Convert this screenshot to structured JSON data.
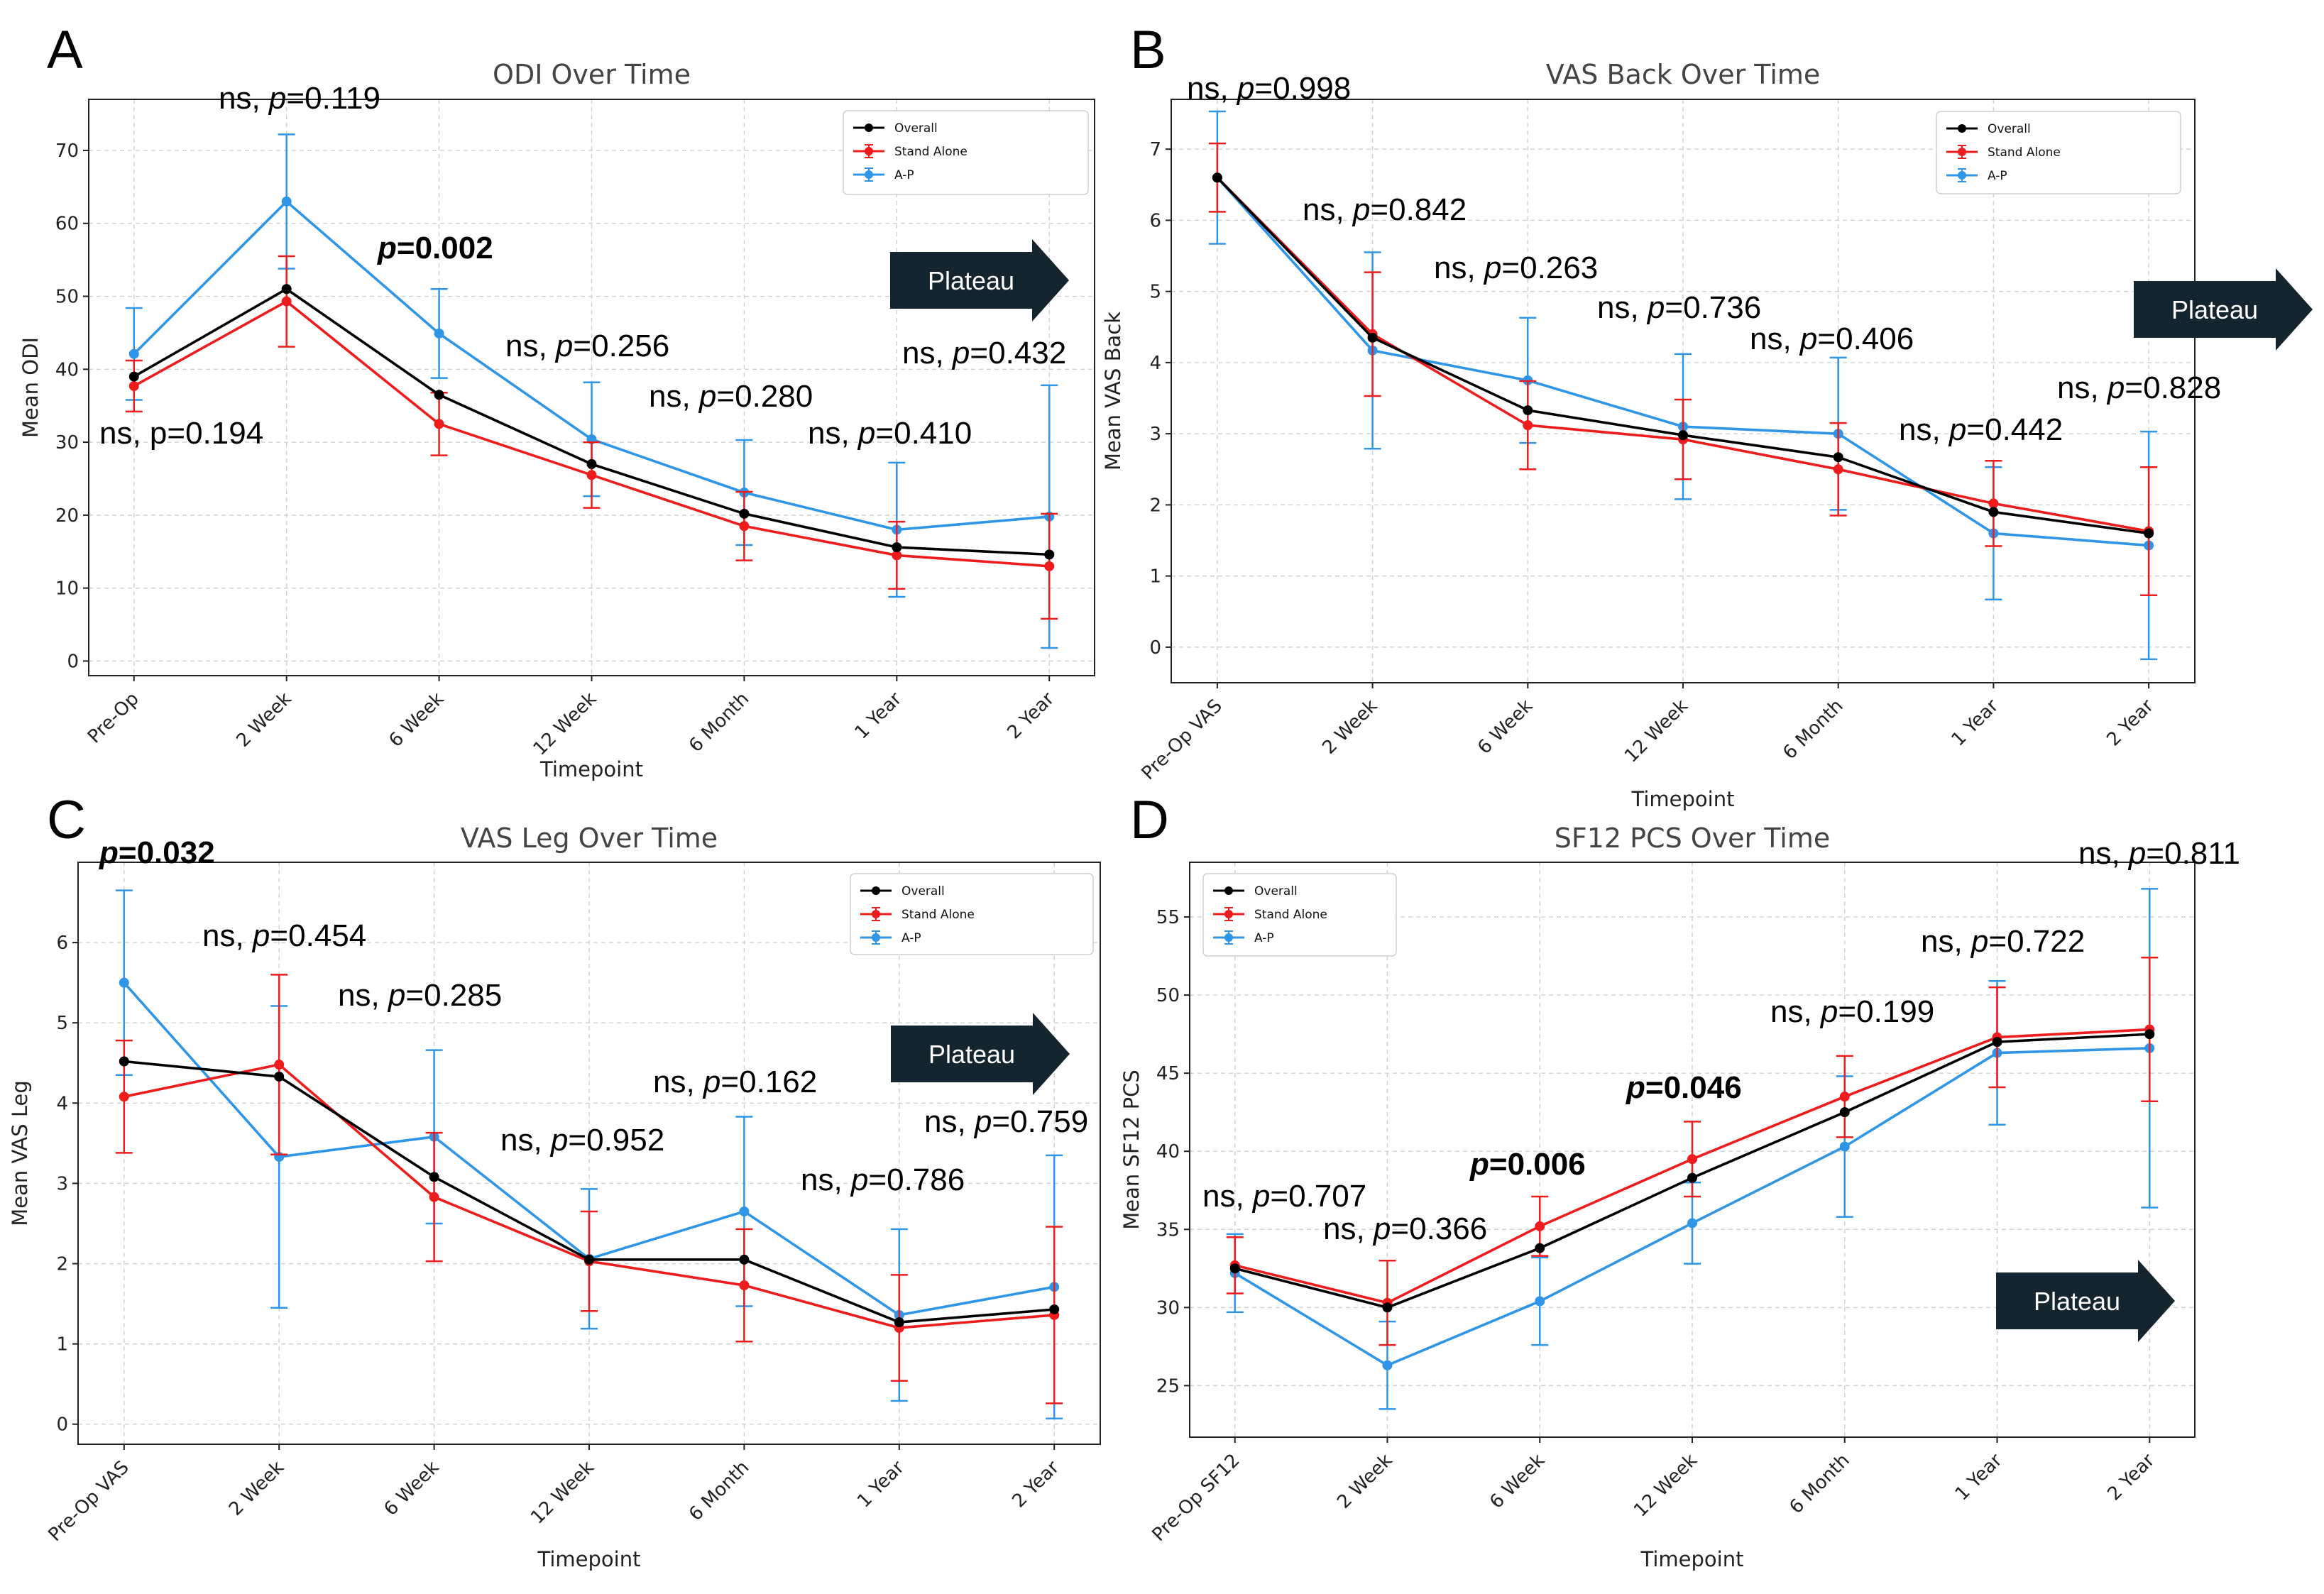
{
  "colors": {
    "overall": "#000000",
    "stand_alone": "#ee1c1c",
    "ap": "#2f95e6",
    "plateau": "#152530"
  },
  "chart_data": [
    {
      "panel": "A",
      "type": "line",
      "title": "ODI Over Time",
      "xlabel": "Timepoint",
      "ylabel": "Mean ODI",
      "categories": [
        "Pre-Op",
        "2 Week",
        "6 Week",
        "12 Week",
        "6 Month",
        "1 Year",
        "2 Year"
      ],
      "ylim": [
        -2,
        77
      ],
      "yticks": [
        0,
        10,
        20,
        30,
        40,
        50,
        60,
        70
      ],
      "series": [
        {
          "name": "Overall",
          "color": "#000000",
          "values": [
            39,
            51,
            36.5,
            27,
            20.2,
            15.6,
            14.6
          ],
          "err": [
            0,
            0,
            0,
            0,
            0,
            0,
            0
          ]
        },
        {
          "name": "Stand Alone",
          "color": "#ee1c1c",
          "values": [
            37.7,
            49.3,
            32.5,
            25.5,
            18.5,
            14.5,
            13
          ],
          "err": [
            3.5,
            6.2,
            4.3,
            4.5,
            4.7,
            4.6,
            7.2
          ]
        },
        {
          "name": "A-P",
          "color": "#2f95e6",
          "values": [
            42.1,
            63,
            44.9,
            30.4,
            23.1,
            18,
            19.8
          ],
          "err": [
            6.3,
            9.2,
            6.1,
            7.8,
            7.2,
            9.2,
            18
          ]
        }
      ],
      "annotations": [
        {
          "text_pre": "ns, ",
          "p_label": "p",
          "text_post": "=0.119",
          "bold": false
        },
        {
          "text_pre": "",
          "p_label": "p",
          "text_post": "=0.002",
          "bold": true
        },
        {
          "text_pre": "ns, ",
          "p_label": "p",
          "text_post": "=0.256",
          "bold": false
        },
        {
          "text_pre": "ns, ",
          "p_label": "p",
          "text_post": "=0.280",
          "bold": false
        },
        {
          "text_pre": "ns, ",
          "p_label": "p",
          "text_post": "=0.432",
          "bold": false
        },
        {
          "text_pre": "ns, ",
          "p_label": "p",
          "text_post": "=0.410",
          "bold": false
        },
        {
          "text_pre": "ns, p=0.194",
          "p_label": "",
          "text_post": "",
          "bold": false
        }
      ],
      "plateau_label": "Plateau",
      "legend": [
        "Overall",
        "Stand Alone",
        "A-P"
      ]
    },
    {
      "panel": "B",
      "type": "line",
      "title": "VAS Back Over Time",
      "xlabel": "Timepoint",
      "ylabel": "Mean VAS Back",
      "categories": [
        "Pre-Op VAS",
        "2 Week",
        "6 Week",
        "12 Week",
        "6 Month",
        "1 Year",
        "2 Year"
      ],
      "ylim": [
        -0.5,
        7.7
      ],
      "yticks": [
        0,
        1,
        2,
        3,
        4,
        5,
        6,
        7
      ],
      "series": [
        {
          "name": "Overall",
          "color": "#000000",
          "values": [
            6.6,
            4.35,
            3.33,
            2.98,
            2.67,
            1.9,
            1.6
          ],
          "err": [
            0,
            0,
            0,
            0,
            0,
            0,
            0
          ]
        },
        {
          "name": "Stand Alone",
          "color": "#ee1c1c",
          "values": [
            6.6,
            4.4,
            3.12,
            2.92,
            2.5,
            2.02,
            1.63
          ],
          "err": [
            0.48,
            0.87,
            0.62,
            0.56,
            0.65,
            0.6,
            0.9
          ]
        },
        {
          "name": "A-P",
          "color": "#2f95e6",
          "values": [
            6.6,
            4.17,
            3.75,
            3.1,
            3.0,
            1.6,
            1.43
          ],
          "err": [
            0.93,
            1.38,
            0.88,
            1.02,
            1.07,
            0.93,
            1.6
          ]
        }
      ],
      "annotations": [
        {
          "text_pre": "ns, ",
          "p_label": "p",
          "text_post": "=0.998",
          "bold": false
        },
        {
          "text_pre": "ns, ",
          "p_label": "p",
          "text_post": "=0.842",
          "bold": false
        },
        {
          "text_pre": "ns, ",
          "p_label": "p",
          "text_post": "=0.263",
          "bold": false
        },
        {
          "text_pre": "ns, ",
          "p_label": "p",
          "text_post": "=0.736",
          "bold": false
        },
        {
          "text_pre": "ns, ",
          "p_label": "p",
          "text_post": "=0.406",
          "bold": false
        },
        {
          "text_pre": "ns, ",
          "p_label": "p",
          "text_post": "=0.442",
          "bold": false
        },
        {
          "text_pre": "ns, ",
          "p_label": "p",
          "text_post": "=0.828",
          "bold": false
        }
      ],
      "plateau_label": "Plateau",
      "legend": [
        "Overall",
        "Stand Alone",
        "A-P"
      ]
    },
    {
      "panel": "C",
      "type": "line",
      "title": "VAS Leg Over Time",
      "xlabel": "Timepoint",
      "ylabel": "Mean VAS Leg",
      "categories": [
        "Pre-Op VAS",
        "2 Week",
        "6 Week",
        "12 Week",
        "6 Month",
        "1 Year",
        "2 Year"
      ],
      "ylim": [
        -0.25,
        7.0
      ],
      "yticks": [
        0,
        1,
        2,
        3,
        4,
        5,
        6
      ],
      "series": [
        {
          "name": "Overall",
          "color": "#000000",
          "values": [
            4.52,
            4.33,
            3.08,
            2.05,
            2.05,
            1.27,
            1.43
          ],
          "err": [
            0,
            0,
            0,
            0,
            0,
            0,
            0
          ]
        },
        {
          "name": "Stand Alone",
          "color": "#ee1c1c",
          "values": [
            4.08,
            4.48,
            2.83,
            2.03,
            1.73,
            1.2,
            1.36
          ],
          "err": [
            0.7,
            1.12,
            0.8,
            0.62,
            0.7,
            0.66,
            1.1
          ]
        },
        {
          "name": "A-P",
          "color": "#2f95e6",
          "values": [
            5.5,
            3.33,
            3.58,
            2.06,
            2.65,
            1.36,
            1.71
          ],
          "err": [
            1.15,
            1.88,
            1.08,
            0.87,
            1.18,
            1.07,
            1.64
          ]
        }
      ],
      "annotations": [
        {
          "text_pre": "",
          "p_label": "p",
          "text_post": "=0.032",
          "bold": true
        },
        {
          "text_pre": "ns, ",
          "p_label": "p",
          "text_post": "=0.454",
          "bold": false
        },
        {
          "text_pre": "ns, ",
          "p_label": "p",
          "text_post": "=0.285",
          "bold": false
        },
        {
          "text_pre": "ns, ",
          "p_label": "p",
          "text_post": "=0.952",
          "bold": false
        },
        {
          "text_pre": "ns, ",
          "p_label": "p",
          "text_post": "=0.162",
          "bold": false
        },
        {
          "text_pre": "ns, ",
          "p_label": "p",
          "text_post": "=0.786",
          "bold": false
        },
        {
          "text_pre": "ns, ",
          "p_label": "p",
          "text_post": "=0.759",
          "bold": false
        }
      ],
      "plateau_label": "Plateau",
      "legend": [
        "Overall",
        "Stand Alone",
        "A-P"
      ]
    },
    {
      "panel": "D",
      "type": "line",
      "title": "SF12 PCS Over Time",
      "xlabel": "Timepoint",
      "ylabel": "Mean SF12 PCS",
      "categories": [
        "Pre-Op SF12",
        "2 Week",
        "6 Week",
        "12 Week",
        "6 Month",
        "1 Year",
        "2 Year"
      ],
      "ylim": [
        21.7,
        58.5
      ],
      "yticks": [
        25,
        30,
        35,
        40,
        45,
        50,
        55
      ],
      "series": [
        {
          "name": "Overall",
          "color": "#000000",
          "values": [
            32.5,
            30,
            33.8,
            38.3,
            42.5,
            47,
            47.5
          ],
          "err": [
            0,
            0,
            0,
            0,
            0,
            0,
            0
          ]
        },
        {
          "name": "Stand Alone",
          "color": "#ee1c1c",
          "values": [
            32.7,
            30.3,
            35.2,
            39.5,
            43.5,
            47.3,
            47.8
          ],
          "err": [
            1.8,
            2.7,
            1.9,
            2.4,
            2.6,
            3.2,
            4.6
          ]
        },
        {
          "name": "A-P",
          "color": "#2f95e6",
          "values": [
            32.2,
            26.3,
            30.4,
            35.4,
            40.3,
            46.3,
            46.6
          ],
          "err": [
            2.5,
            2.8,
            2.8,
            2.6,
            4.5,
            4.6,
            10.2
          ]
        }
      ],
      "annotations": [
        {
          "text_pre": "ns, ",
          "p_label": "p",
          "text_post": "=0.707",
          "bold": false
        },
        {
          "text_pre": "ns, ",
          "p_label": "p",
          "text_post": "=0.366",
          "bold": false
        },
        {
          "text_pre": "",
          "p_label": "p",
          "text_post": "=0.006",
          "bold": true
        },
        {
          "text_pre": "",
          "p_label": "p",
          "text_post": "=0.046",
          "bold": true
        },
        {
          "text_pre": "ns, ",
          "p_label": "p",
          "text_post": "=0.199",
          "bold": false
        },
        {
          "text_pre": "ns, ",
          "p_label": "p",
          "text_post": "=0.722",
          "bold": false
        },
        {
          "text_pre": "ns, ",
          "p_label": "p",
          "text_post": "=0.811",
          "bold": false
        }
      ],
      "plateau_label": "Plateau",
      "legend": [
        "Overall",
        "Stand Alone",
        "A-P"
      ]
    }
  ]
}
